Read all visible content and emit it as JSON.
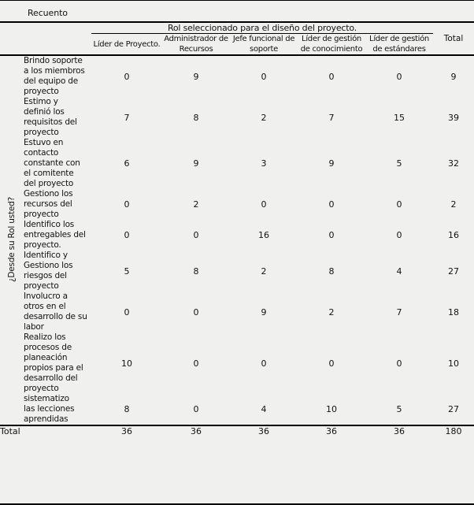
{
  "title": "Recuento",
  "table": {
    "col_group_header": "Rol seleccionado para el diseño del proyecto.",
    "total_col_header": "Total",
    "row_group_header": "¿Desde su Rol usted?",
    "columns": [
      "Líder de Proyecto.",
      "Administrador de\nRecursos",
      "Jefe funcional de\nsoporte",
      "Líder de gestión\nde conocimiento",
      "Líder de gestión\nde estándares"
    ],
    "rows": [
      {
        "label": "Brindo soporte\na los miembros\ndel equipo de\nproyecto",
        "values": [
          0,
          9,
          0,
          0,
          0
        ],
        "total": 9
      },
      {
        "label": "Estimo  y\ndefinió los\nrequisitos del\nproyecto",
        "values": [
          7,
          8,
          2,
          7,
          15
        ],
        "total": 39
      },
      {
        "label": "Estuvo en\ncontacto\nconstante con\nel comitente\ndel proyecto",
        "values": [
          6,
          9,
          3,
          9,
          5
        ],
        "total": 32
      },
      {
        "label": "Gestiono los\nrecursos del\nproyecto",
        "values": [
          0,
          2,
          0,
          0,
          0
        ],
        "total": 2
      },
      {
        "label": "Identifico los\nentregables del\nproyecto.",
        "values": [
          0,
          0,
          16,
          0,
          0
        ],
        "total": 16
      },
      {
        "label": "Identifico y\nGestiono los\nriesgos del\nproyecto",
        "values": [
          5,
          8,
          2,
          8,
          4
        ],
        "total": 27
      },
      {
        "label": "Involucro a\notros en el\ndesarrollo de su\nlabor",
        "values": [
          0,
          0,
          9,
          2,
          7
        ],
        "total": 18
      },
      {
        "label": "Realizo los\nprocesos de\nplaneación\npropios para el\ndesarrollo del\nproyecto",
        "values": [
          10,
          0,
          0,
          0,
          0
        ],
        "total": 10
      },
      {
        "label": "sistematizo\nlas lecciones\naprendidas",
        "values": [
          8,
          0,
          4,
          10,
          5
        ],
        "total": 27
      }
    ],
    "total_row": {
      "label": "Total",
      "values": [
        36,
        36,
        36,
        36,
        36
      ],
      "total": 180
    }
  },
  "chart_data": {
    "type": "table",
    "title": "Recuento",
    "column_group": "Rol seleccionado para el diseño del proyecto.",
    "row_group": "¿Desde su Rol usted?",
    "categories": [
      "Líder de Proyecto.",
      "Administrador de Recursos",
      "Jefe funcional de soporte",
      "Líder de gestión de conocimiento",
      "Líder de gestión de estándares",
      "Total"
    ],
    "series": [
      {
        "name": "Brindo soporte a los miembros del equipo de proyecto",
        "values": [
          0,
          9,
          0,
          0,
          0,
          9
        ]
      },
      {
        "name": "Estimo  y definió los requisitos del proyecto",
        "values": [
          7,
          8,
          2,
          7,
          15,
          39
        ]
      },
      {
        "name": "Estuvo en contacto constante con el comitente del proyecto",
        "values": [
          6,
          9,
          3,
          9,
          5,
          32
        ]
      },
      {
        "name": "Gestiono los recursos del proyecto",
        "values": [
          0,
          2,
          0,
          0,
          0,
          2
        ]
      },
      {
        "name": "Identifico los entregables del proyecto.",
        "values": [
          0,
          0,
          16,
          0,
          0,
          16
        ]
      },
      {
        "name": "Identifico y Gestiono los riesgos del proyecto",
        "values": [
          5,
          8,
          2,
          8,
          4,
          27
        ]
      },
      {
        "name": "Involucro a otros en el desarrollo de su labor",
        "values": [
          0,
          0,
          9,
          2,
          7,
          18
        ]
      },
      {
        "name": "Realizo los procesos de planeación propios para el desarrollo del proyecto",
        "values": [
          10,
          0,
          0,
          0,
          0,
          10
        ]
      },
      {
        "name": "sistematizo las lecciones aprendidas",
        "values": [
          8,
          0,
          4,
          10,
          5,
          27
        ]
      },
      {
        "name": "Total",
        "values": [
          36,
          36,
          36,
          36,
          36,
          180
        ]
      }
    ]
  },
  "colors": {
    "background": "#f0f0ee",
    "text": "#121212",
    "rule": "#000000"
  }
}
